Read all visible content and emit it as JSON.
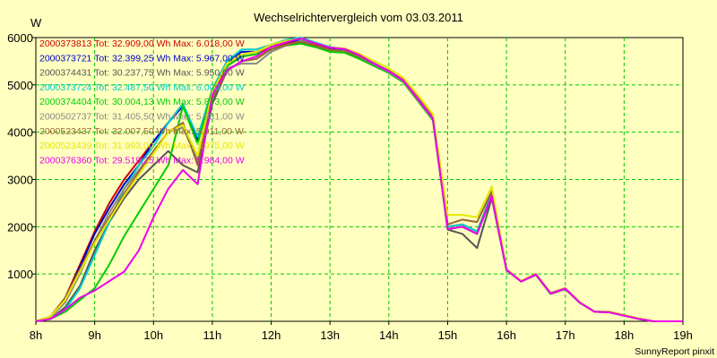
{
  "chart_data": {
    "type": "line",
    "title": "Wechselrichtervergleich vom 03.03.2011",
    "ylabel": "W",
    "xlabel": "",
    "footer": "SunnyReport pinxit",
    "x_ticks": [
      "8h",
      "9h",
      "10h",
      "11h",
      "12h",
      "13h",
      "14h",
      "15h",
      "16h",
      "17h",
      "18h",
      "19h"
    ],
    "y_ticks": [
      "1000",
      "2000",
      "3000",
      "4000",
      "5000",
      "6000"
    ],
    "xlim": [
      8,
      19
    ],
    "ylim": [
      0,
      6000
    ],
    "grid": true,
    "legend_position": "top-left",
    "x": [
      8.0,
      8.25,
      8.5,
      8.75,
      9.0,
      9.25,
      9.5,
      9.75,
      10.0,
      10.25,
      10.5,
      10.75,
      11.0,
      11.25,
      11.5,
      11.75,
      12.0,
      12.25,
      12.5,
      12.75,
      13.0,
      13.25,
      13.5,
      13.75,
      14.0,
      14.25,
      14.5,
      14.75,
      15.0,
      15.25,
      15.5,
      15.75,
      16.0,
      16.25,
      16.5,
      16.75,
      17.0,
      17.25,
      17.5,
      17.75,
      18.0,
      18.25,
      18.5,
      18.75,
      19.0
    ],
    "series": [
      {
        "name": "2000373813",
        "label": "2000373813 Tot: 32.909,00 Wh Max: 6.018,00 W",
        "color": "#cc0000",
        "values": [
          0,
          100,
          500,
          1200,
          1900,
          2500,
          3000,
          3400,
          3800,
          4200,
          4600,
          3800,
          4800,
          5400,
          5600,
          5650,
          5800,
          5880,
          5950,
          5850,
          5760,
          5740,
          5600,
          5450,
          5300,
          5100,
          4700,
          4300,
          2000,
          2050,
          1900,
          2700,
          1100,
          850,
          1000,
          600,
          700,
          400,
          200,
          200,
          130,
          60,
          0,
          0,
          0
        ]
      },
      {
        "name": "2000373721",
        "label": "2000373721 Tot: 32.399,25 Wh Max: 5.967,00 W",
        "color": "#0000cc",
        "values": [
          0,
          80,
          450,
          1150,
          1850,
          2400,
          2900,
          3300,
          3800,
          4200,
          4550,
          3850,
          4900,
          5500,
          5700,
          5700,
          5850,
          5900,
          5960,
          5880,
          5780,
          5750,
          5620,
          5440,
          5280,
          5080,
          4680,
          4280,
          1950,
          2000,
          1850,
          2650,
          1100,
          850,
          1000,
          600,
          700,
          400,
          200,
          200,
          130,
          60,
          0,
          0,
          0
        ]
      },
      {
        "name": "2000374431",
        "label": "2000374431 Tot: 30.237,75 Wh Max: 5.950,00 W",
        "color": "#555555",
        "values": [
          0,
          50,
          300,
          750,
          1500,
          2100,
          2600,
          3000,
          3300,
          3600,
          3300,
          3150,
          4600,
          5300,
          5500,
          5550,
          5750,
          5850,
          5900,
          5820,
          5740,
          5720,
          5580,
          5420,
          5260,
          5060,
          4660,
          4260,
          1940,
          1850,
          1550,
          2600,
          1080,
          840,
          980,
          580,
          680,
          390,
          200,
          190,
          120,
          50,
          0,
          0,
          0
        ]
      },
      {
        "name": "2000373724",
        "label": "2000373724 Tot: 32.487,50 Wh Max: 6.000,00 W",
        "color": "#00cccc",
        "values": [
          0,
          60,
          250,
          700,
          1400,
          2100,
          2800,
          3300,
          3700,
          4200,
          4600,
          3900,
          4900,
          5500,
          5750,
          5750,
          5850,
          5950,
          6000,
          5900,
          5800,
          5760,
          5640,
          5460,
          5300,
          5100,
          4700,
          4300,
          2000,
          2050,
          1900,
          2700,
          1100,
          850,
          1000,
          600,
          700,
          400,
          200,
          200,
          130,
          60,
          0,
          0,
          0
        ]
      },
      {
        "name": "2000374404",
        "label": "2000374404 Tot: 30.004,13 Wh Max: 5.873,00 W",
        "color": "#00cc00",
        "values": [
          0,
          50,
          200,
          450,
          700,
          1200,
          1800,
          2300,
          2800,
          3300,
          4550,
          3750,
          4900,
          5400,
          5600,
          5650,
          5750,
          5830,
          5873,
          5800,
          5700,
          5680,
          5550,
          5400,
          5250,
          5050,
          4650,
          4250,
          1950,
          2000,
          1850,
          2650,
          1090,
          840,
          990,
          590,
          690,
          390,
          200,
          190,
          120,
          50,
          0,
          0,
          0
        ]
      },
      {
        "name": "2000502737",
        "label": "2000502737 Tot: 31.405,50 Wh Max: 5.931,00 W",
        "color": "#888888",
        "values": [
          0,
          80,
          400,
          1000,
          1700,
          2300,
          2800,
          3200,
          3600,
          4000,
          4100,
          3400,
          4700,
          5350,
          5450,
          5450,
          5700,
          5830,
          5931,
          5830,
          5740,
          5720,
          5590,
          5430,
          5270,
          5070,
          4670,
          4270,
          1950,
          2000,
          1850,
          2650,
          1090,
          840,
          990,
          590,
          690,
          390,
          200,
          190,
          120,
          50,
          0,
          0,
          0
        ]
      },
      {
        "name": "2000523437",
        "label": "2000523437 Tot: 32.007,50 Wh Max: 5.911,00 W",
        "color": "#996633",
        "values": [
          0,
          100,
          500,
          1100,
          1700,
          2200,
          2700,
          3150,
          3600,
          4000,
          4200,
          3300,
          4700,
          5300,
          5500,
          5550,
          5750,
          5850,
          5911,
          5830,
          5740,
          5720,
          5600,
          5450,
          5300,
          5100,
          4750,
          4350,
          2050,
          2150,
          2100,
          2750,
          1100,
          850,
          1000,
          600,
          700,
          400,
          200,
          200,
          130,
          60,
          0,
          0,
          0
        ]
      },
      {
        "name": "2000523439",
        "label": "2000523439 Tot: 31.993,00 Wh Max: 5.975,00 W",
        "color": "#e6e600",
        "values": [
          0,
          100,
          450,
          1050,
          1650,
          2150,
          2650,
          3100,
          3550,
          4000,
          4150,
          3500,
          4850,
          5450,
          5650,
          5700,
          5850,
          5930,
          5975,
          5880,
          5790,
          5770,
          5660,
          5500,
          5350,
          5150,
          4780,
          4380,
          2250,
          2250,
          2200,
          2850,
          1100,
          850,
          1000,
          600,
          700,
          400,
          200,
          200,
          130,
          60,
          0,
          0,
          0
        ]
      },
      {
        "name": "2000376360",
        "label": "2000376360 Tot: 29.519,25 Wh Max: 5.984,00 W",
        "color": "#ee00ee",
        "values": [
          0,
          50,
          250,
          500,
          650,
          850,
          1050,
          1500,
          2200,
          2800,
          3200,
          2900,
          4800,
          5300,
          5500,
          5600,
          5800,
          5900,
          5984,
          5880,
          5790,
          5760,
          5630,
          5450,
          5290,
          5090,
          4690,
          4290,
          1950,
          2000,
          1850,
          2650,
          1090,
          840,
          990,
          590,
          690,
          390,
          200,
          190,
          120,
          50,
          0,
          0,
          0
        ]
      }
    ]
  }
}
